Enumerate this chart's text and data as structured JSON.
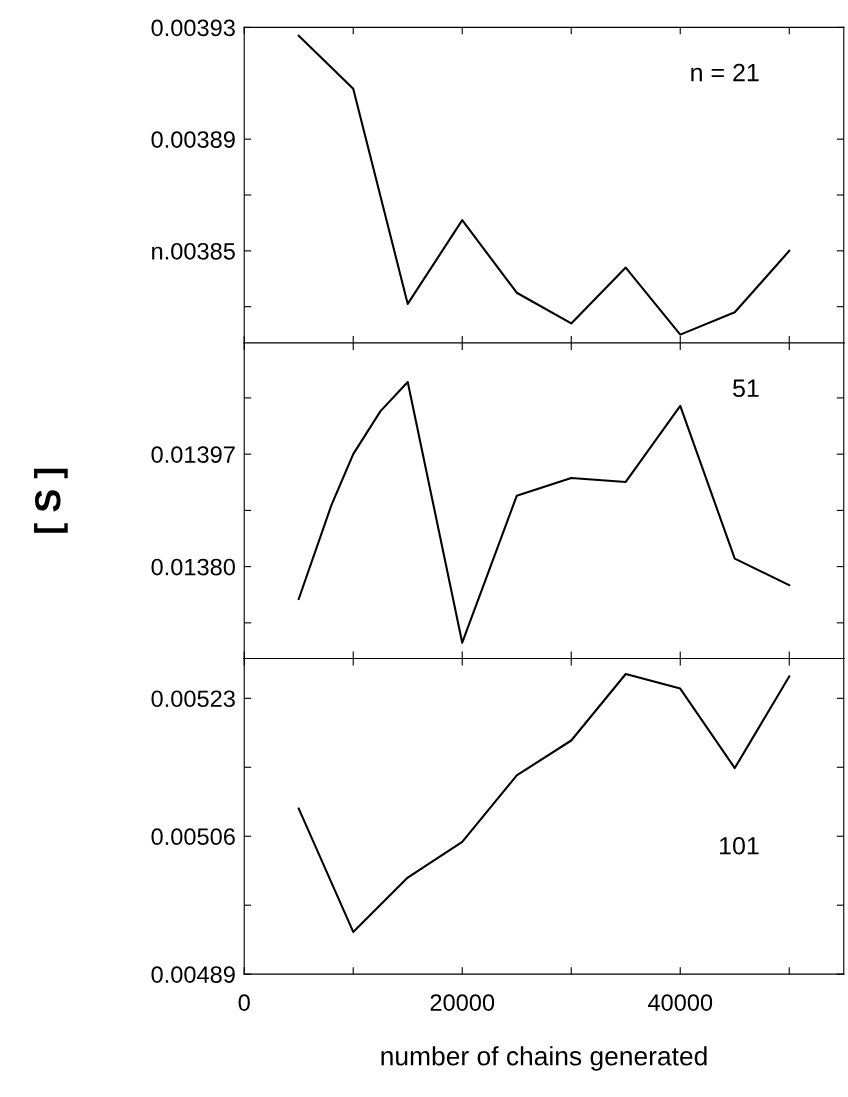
{
  "chart_data": [
    {
      "type": "line",
      "annotations": [
        "n = 21"
      ],
      "x": [
        5000,
        10000,
        15000,
        20000,
        25000,
        30000,
        35000,
        40000,
        45000,
        50000
      ],
      "series": [
        {
          "color": "#000000",
          "values": [
            0.003927,
            0.003908,
            0.003831,
            0.003861,
            0.003835,
            0.003824,
            0.003844,
            0.00382,
            0.003828,
            0.00385
          ]
        }
      ],
      "xlim": [
        0,
        55000
      ],
      "xticks": [
        0,
        10000,
        20000,
        30000,
        40000,
        50000
      ],
      "ylim": [
        0.003817,
        0.00393
      ],
      "yticks": [
        {
          "value": 0.00383,
          "label": null
        },
        {
          "value": 0.00385,
          "label": "n.00385"
        },
        {
          "value": 0.00387,
          "label": null
        },
        {
          "value": 0.00389,
          "label": "0.00389"
        },
        {
          "value": 0.00393,
          "label": "0.00393"
        }
      ],
      "tick_labels": "y",
      "grid": false,
      "legend": false,
      "marker": "none",
      "line_style": "solid"
    },
    {
      "type": "line",
      "ylabel": "[ S ]",
      "annotations": [
        "51"
      ],
      "x": [
        5000,
        8000,
        10000,
        12500,
        15000,
        20000,
        25000,
        30000,
        35000,
        40000,
        45000,
        50000
      ],
      "series": [
        {
          "color": "#000000",
          "values": [
            0.013751,
            0.013893,
            0.01397,
            0.014035,
            0.014079,
            0.013685,
            0.013907,
            0.013934,
            0.013928,
            0.014043,
            0.013812,
            0.013772
          ]
        }
      ],
      "xlim": [
        0,
        55000
      ],
      "xticks": [
        0,
        10000,
        20000,
        30000,
        40000,
        50000
      ],
      "ylim": [
        0.013661,
        0.014138
      ],
      "yticks": [
        {
          "value": 0.013715,
          "label": null
        },
        {
          "value": 0.0138,
          "label": "0.01380"
        },
        {
          "value": 0.013885,
          "label": null
        },
        {
          "value": 0.01397,
          "label": "0.01397"
        },
        {
          "value": 0.014055,
          "label": null
        }
      ],
      "tick_labels": "y",
      "grid": false,
      "legend": false,
      "marker": "none",
      "line_style": "solid"
    },
    {
      "type": "line",
      "xlabel": "number of chains generated",
      "annotations": [
        "101"
      ],
      "x": [
        5000,
        10000,
        15000,
        20000,
        25000,
        30000,
        35000,
        40000,
        45000,
        50000
      ],
      "series": [
        {
          "color": "#000000",
          "values": [
            0.005094,
            0.004942,
            0.005009,
            0.005053,
            0.005135,
            0.005178,
            0.00526,
            0.005242,
            0.005144,
            0.005257
          ]
        }
      ],
      "xlim": [
        0,
        55000
      ],
      "xticks": [
        {
          "value": 0,
          "label": "0"
        },
        {
          "value": 10000,
          "label": null
        },
        {
          "value": 20000,
          "label": "20000"
        },
        {
          "value": 30000,
          "label": null
        },
        {
          "value": 40000,
          "label": "40000"
        },
        {
          "value": 50000,
          "label": null
        }
      ],
      "ylim": [
        0.00489,
        0.005279
      ],
      "yticks": [
        {
          "value": 0.00489,
          "label": "0.00489"
        },
        {
          "value": 0.004975,
          "label": null
        },
        {
          "value": 0.00506,
          "label": "0.00506"
        },
        {
          "value": 0.005145,
          "label": null
        },
        {
          "value": 0.00523,
          "label": "0.00523"
        }
      ],
      "grid": false,
      "legend": false,
      "marker": "none",
      "line_style": "solid"
    }
  ]
}
